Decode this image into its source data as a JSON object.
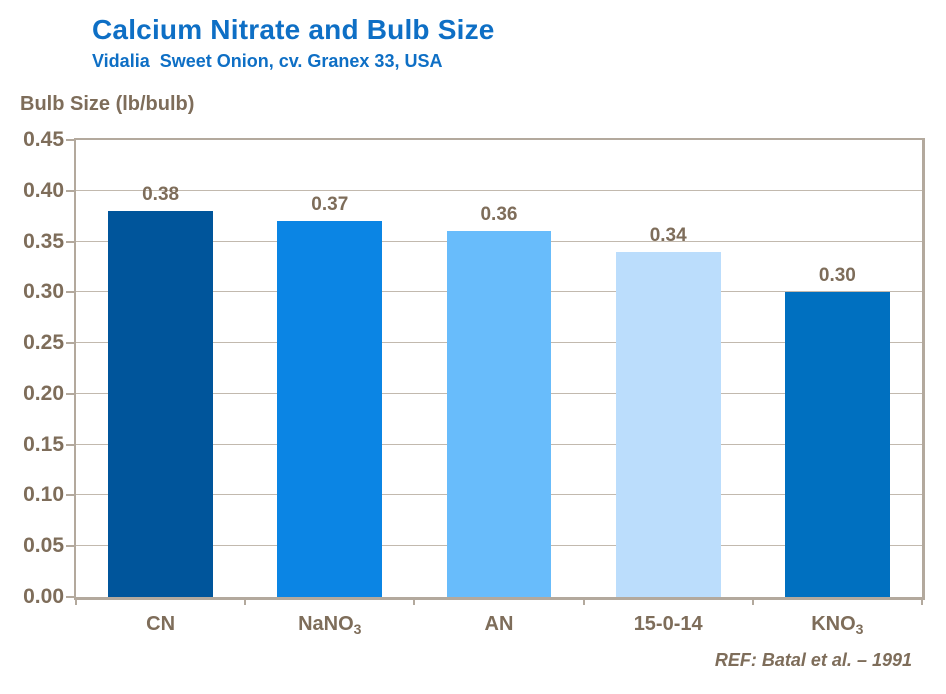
{
  "header": {
    "title": "Calcium Nitrate and Bulb Size",
    "subtitle": "Vidalia  Sweet Onion, cv. Granex 33, USA"
  },
  "footnote": "REF: Batal et al. – 1991",
  "colors": {
    "title_blue": "#0e6fc5",
    "axis_text_brown": "#7e6d5a",
    "gridline": "#c2b9ae",
    "axis_frame": "#b3a99d",
    "background": "#ffffff"
  },
  "chart_data": {
    "type": "bar",
    "title": "Calcium Nitrate and Bulb Size",
    "subtitle": "Vidalia  Sweet Onion, cv. Granex 33, USA",
    "xlabel": "",
    "ylabel": "Bulb Size (lb/bulb)",
    "categories": [
      "CN",
      "NaNO3",
      "AN",
      "15-0-14",
      "KNO3"
    ],
    "category_display": [
      {
        "base": "CN",
        "sub": ""
      },
      {
        "base": "NaNO",
        "sub": "3"
      },
      {
        "base": "AN",
        "sub": ""
      },
      {
        "base": "15-0-14",
        "sub": ""
      },
      {
        "base": "KNO",
        "sub": "3"
      }
    ],
    "values": [
      0.38,
      0.37,
      0.36,
      0.34,
      0.3
    ],
    "value_labels": [
      "0.38",
      "0.37",
      "0.36",
      "0.34",
      "0.30"
    ],
    "bar_colors": [
      "#00559b",
      "#0b85e4",
      "#68bcfb",
      "#bbddfc",
      "#0070c0"
    ],
    "ylim": [
      0,
      0.45
    ],
    "yticks": [
      "0.00",
      "0.05",
      "0.10",
      "0.15",
      "0.20",
      "0.25",
      "0.30",
      "0.35",
      "0.40",
      "0.45"
    ],
    "grid": true,
    "legend": false,
    "annotation": "REF: Batal et al. – 1991"
  }
}
